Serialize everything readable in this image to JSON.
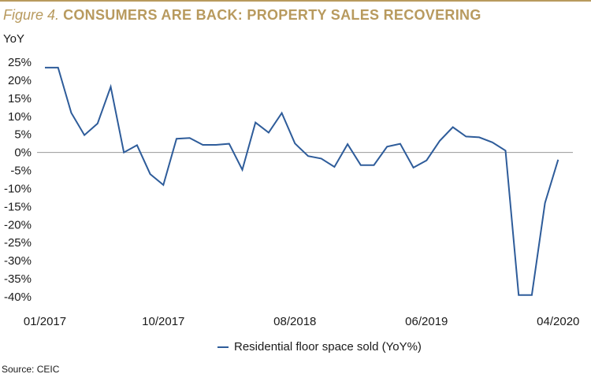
{
  "header": {
    "figure_label": "Figure 4.",
    "title": "CONSUMERS ARE BACK: PROPERTY SALES RECOVERING"
  },
  "source": "Source: CEIC",
  "colors": {
    "accent": "#b89a5e",
    "series": "#2e5c9a",
    "zero_line": "#9a9a9a"
  },
  "chart_data": {
    "type": "line",
    "ylabel": "YoY",
    "xlabel": "",
    "ylim": [
      -40,
      25
    ],
    "y_ticks": [
      25,
      20,
      15,
      10,
      5,
      0,
      -5,
      -10,
      -15,
      -20,
      -25,
      -30,
      -35,
      -40
    ],
    "y_tick_labels": [
      "25%",
      "20%",
      "15%",
      "10%",
      "5%",
      "0%",
      "-5%",
      "-10%",
      "-15%",
      "-20%",
      "-25%",
      "-30%",
      "-35%",
      "-40%"
    ],
    "x_tick_labels": [
      {
        "label": "01/2017",
        "date": "2017-01"
      },
      {
        "label": "10/2017",
        "date": "2017-10"
      },
      {
        "label": "08/2018",
        "date": "2018-08"
      },
      {
        "label": "06/2019",
        "date": "2019-06"
      },
      {
        "label": "04/2020",
        "date": "2020-04"
      }
    ],
    "grid": false,
    "legend_position": "bottom-center",
    "series": [
      {
        "name": "Residential floor space sold (YoY%)",
        "x": [
          "2017-01",
          "2017-02",
          "2017-03",
          "2017-04",
          "2017-05",
          "2017-06",
          "2017-07",
          "2017-08",
          "2017-09",
          "2017-10",
          "2017-11",
          "2017-12",
          "2018-01",
          "2018-02",
          "2018-03",
          "2018-04",
          "2018-05",
          "2018-06",
          "2018-07",
          "2018-08",
          "2018-09",
          "2018-10",
          "2018-11",
          "2018-12",
          "2019-01",
          "2019-02",
          "2019-03",
          "2019-04",
          "2019-05",
          "2019-06",
          "2019-07",
          "2019-08",
          "2019-09",
          "2019-10",
          "2019-11",
          "2019-12",
          "2020-01",
          "2020-02",
          "2020-03",
          "2020-04",
          "2020-05"
        ],
        "values": [
          23.5,
          23.5,
          11,
          4.8,
          8,
          18.2,
          0,
          2,
          -6,
          -9,
          3.8,
          4,
          2.1,
          2.1,
          2.4,
          -4.8,
          8.3,
          5.5,
          10.9,
          2.5,
          -1,
          -1.7,
          -4,
          2.3,
          -3.5,
          -3.5,
          1.6,
          2.4,
          -4.2,
          -2.2,
          3.2,
          7,
          4.4,
          4.2,
          2.8,
          0.5,
          -39.5,
          -39.5,
          -14,
          -2,
          null
        ],
        "color": "#2e5c9a"
      }
    ]
  }
}
